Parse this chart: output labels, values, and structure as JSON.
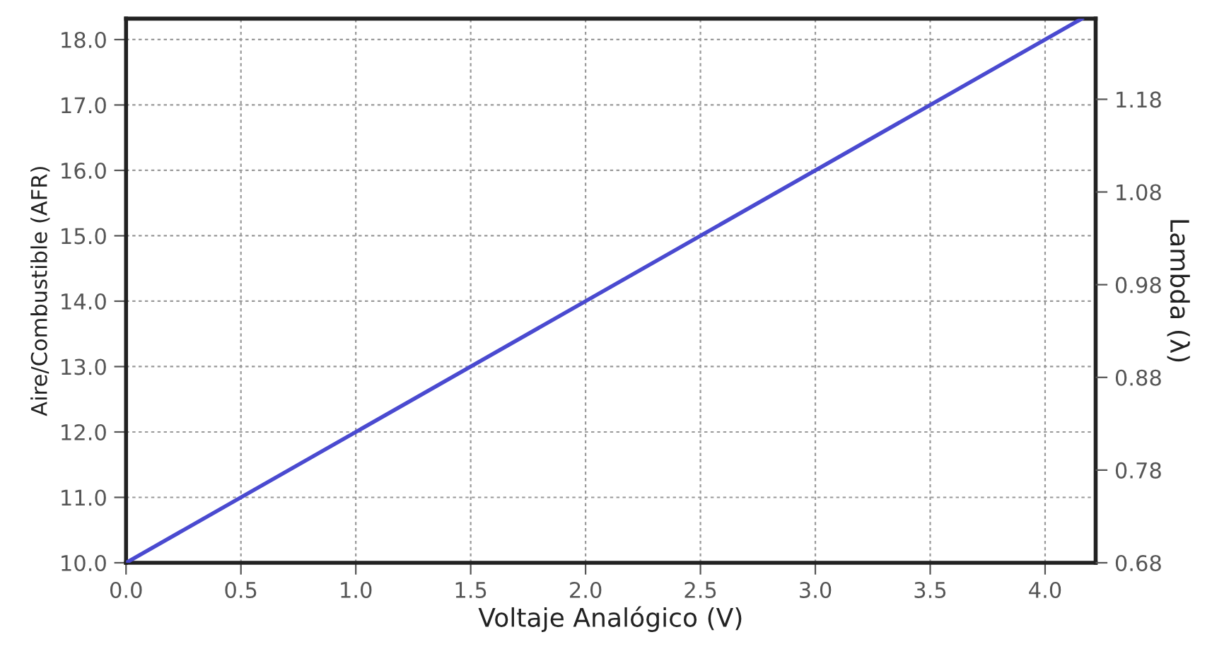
{
  "chart_data": {
    "type": "line",
    "xlabel": "Voltaje Analógico (V)",
    "ylabel": "Aire/Combustible (AFR)",
    "y2label": "Lambda (λ)",
    "x": [
      0,
      4.16
    ],
    "series": [
      {
        "color": "#4a4ad0",
        "values": [
          10.0,
          18.32
        ]
      }
    ],
    "xlim": [
      0,
      4.22
    ],
    "xticks": [
      {
        "value": 0,
        "label": "0.0"
      },
      {
        "value": 0.5,
        "label": "0.5"
      },
      {
        "value": 1,
        "label": "1.0"
      },
      {
        "value": 1.5,
        "label": "1.5"
      },
      {
        "value": 2,
        "label": "2.0"
      },
      {
        "value": 2.5,
        "label": "2.5"
      },
      {
        "value": 3,
        "label": "3.0"
      },
      {
        "value": 3.5,
        "label": "3.5"
      },
      {
        "value": 4,
        "label": "4.0"
      }
    ],
    "ylim": [
      10,
      18.32
    ],
    "yticks": [
      {
        "value": 10,
        "label": "10.0"
      },
      {
        "value": 11,
        "label": "11.0"
      },
      {
        "value": 12,
        "label": "12.0"
      },
      {
        "value": 13,
        "label": "13.0"
      },
      {
        "value": 14,
        "label": "14.0"
      },
      {
        "value": 15,
        "label": "15.0"
      },
      {
        "value": 16,
        "label": "16.0"
      },
      {
        "value": 17,
        "label": "17.0"
      },
      {
        "value": 18,
        "label": "18.0"
      }
    ],
    "y2lim": [
      0.68,
      1.267
    ],
    "y2ticks": [
      0.68,
      0.78,
      0.88,
      0.98,
      1.08,
      1.18
    ],
    "grid": true,
    "line_style": "solid",
    "marker": "none"
  }
}
